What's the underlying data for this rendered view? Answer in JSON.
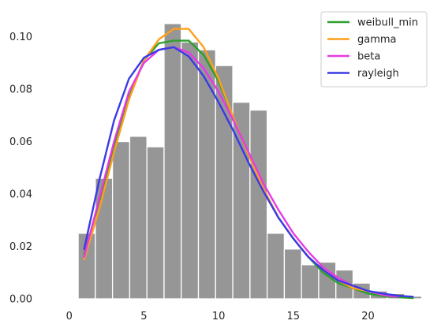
{
  "chart_data": {
    "type": "bar",
    "histogram": {
      "color": "#969696",
      "edge_color": "#ffffff",
      "bin_edges": [
        0.6,
        1.75,
        2.9,
        4.05,
        5.2,
        6.35,
        7.5,
        8.65,
        9.8,
        10.95,
        12.1,
        13.25,
        14.4,
        15.55,
        16.7,
        17.85,
        19.0,
        20.15,
        21.3,
        22.45,
        23.6
      ],
      "densities": [
        0.025,
        0.046,
        0.06,
        0.062,
        0.058,
        0.105,
        0.098,
        0.095,
        0.089,
        0.075,
        0.072,
        0.025,
        0.019,
        0.013,
        0.014,
        0.011,
        0.006,
        0.003,
        0.002,
        0.001
      ]
    },
    "series": [
      {
        "name": "weibull_min",
        "color": "#2ca02c",
        "x": [
          1,
          2,
          3,
          4,
          5,
          6,
          7,
          8,
          9,
          10,
          11,
          12,
          13,
          14,
          15,
          16,
          17,
          18,
          19,
          20,
          21,
          22,
          23
        ],
        "values": [
          0.017,
          0.037,
          0.058,
          0.077,
          0.091,
          0.0975,
          0.0985,
          0.0985,
          0.093,
          0.083,
          0.069,
          0.055,
          0.042,
          0.031,
          0.023,
          0.016,
          0.01,
          0.006,
          0.004,
          0.002,
          0.001,
          0.0006,
          0.0003
        ]
      },
      {
        "name": "gamma",
        "color": "#ff9f1a",
        "x": [
          1,
          2,
          3,
          4,
          5,
          6,
          7,
          8,
          9,
          10,
          11,
          12,
          13,
          14,
          15,
          16,
          17,
          18,
          19,
          20,
          21,
          22
        ],
        "values": [
          0.015,
          0.034,
          0.056,
          0.076,
          0.091,
          0.099,
          0.103,
          0.103,
          0.096,
          0.084,
          0.069,
          0.055,
          0.042,
          0.031,
          0.023,
          0.016,
          0.011,
          0.007,
          0.004,
          0.003,
          0.0015,
          0.0008
        ]
      },
      {
        "name": "beta",
        "color": "#e63ae6",
        "x": [
          1,
          2,
          3,
          4,
          5,
          6,
          7,
          8,
          9,
          10,
          11,
          12,
          13,
          14,
          15,
          16,
          17,
          18,
          19,
          20,
          21,
          22
        ],
        "values": [
          0.016,
          0.038,
          0.06,
          0.079,
          0.09,
          0.095,
          0.096,
          0.094,
          0.088,
          0.079,
          0.068,
          0.056,
          0.044,
          0.034,
          0.025,
          0.018,
          0.012,
          0.008,
          0.005,
          0.003,
          0.0015,
          0.0007
        ]
      },
      {
        "name": "rayleigh",
        "color": "#3a3ae6",
        "x": [
          1,
          2,
          3,
          4,
          5,
          6,
          7,
          8,
          9,
          10,
          11,
          12,
          13,
          14,
          15,
          16,
          17,
          18,
          19,
          20,
          21,
          22,
          23
        ],
        "values": [
          0.019,
          0.045,
          0.068,
          0.084,
          0.092,
          0.095,
          0.096,
          0.0925,
          0.085,
          0.075,
          0.064,
          0.052,
          0.041,
          0.031,
          0.023,
          0.016,
          0.011,
          0.007,
          0.005,
          0.003,
          0.002,
          0.0012,
          0.0008
        ]
      }
    ],
    "xticks": [
      0,
      5,
      10,
      15,
      20
    ],
    "yticks": [
      0.0,
      0.02,
      0.04,
      0.06,
      0.08,
      0.1
    ],
    "xtick_labels": [
      "0",
      "5",
      "10",
      "15",
      "20"
    ],
    "ytick_labels": [
      "0.00",
      "0.02",
      "0.04",
      "0.06",
      "0.08",
      "0.10"
    ],
    "xlim": [
      -1.2,
      24.2
    ],
    "ylim": [
      0,
      0.111
    ],
    "xlabel": "",
    "ylabel": "",
    "title": "",
    "grid": false,
    "legend_position": "top-right"
  }
}
